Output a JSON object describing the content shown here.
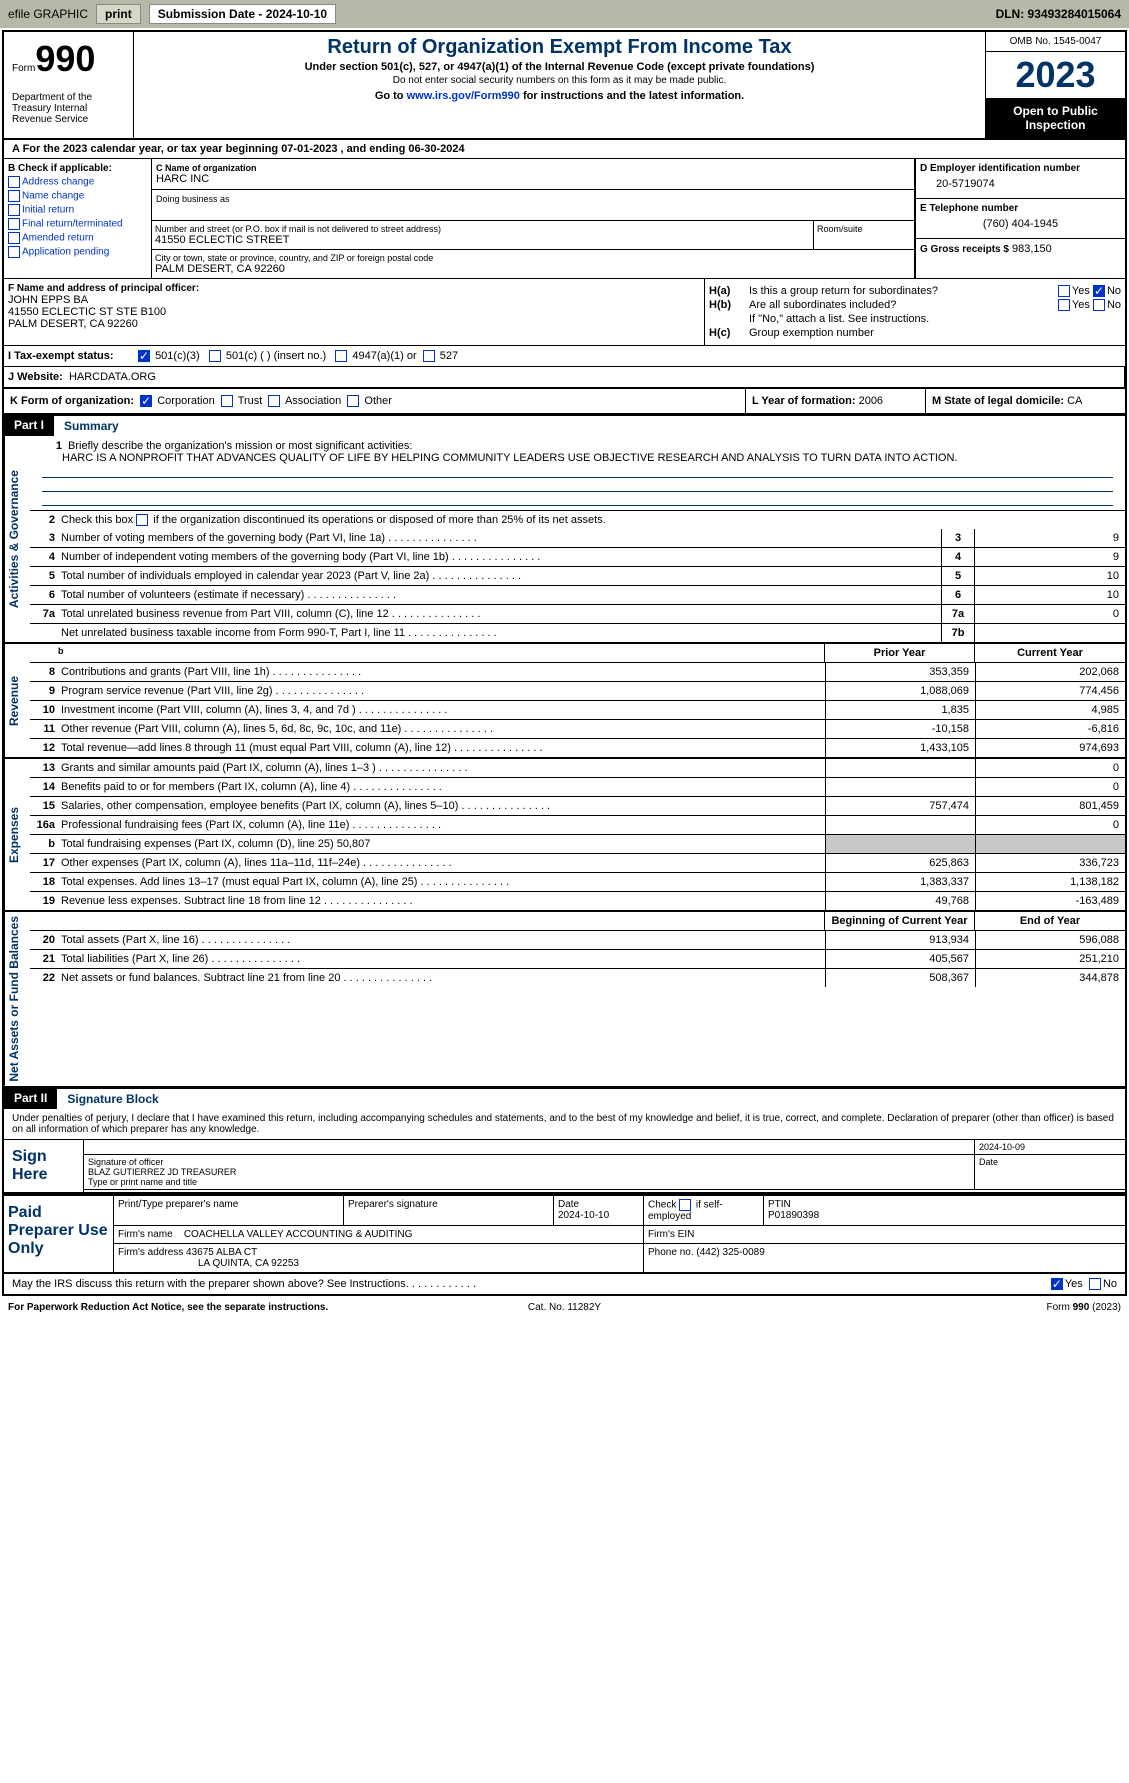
{
  "top_bar": {
    "efile_label": "efile GRAPHIC",
    "print_btn": "print",
    "sub_date_label": "Submission Date - 2024-10-10",
    "dln": "DLN: 93493284015064"
  },
  "header": {
    "form_label": "Form",
    "form_number": "990",
    "dept": "Department of the Treasury Internal Revenue Service",
    "title": "Return of Organization Exempt From Income Tax",
    "subtitle": "Under section 501(c), 527, or 4947(a)(1) of the Internal Revenue Code (except private foundations)",
    "note": "Do not enter social security numbers on this form as it may be made public.",
    "link_prefix": "Go to ",
    "link_url": "www.irs.gov/Form990",
    "link_suffix": " for instructions and the latest information.",
    "omb": "OMB No. 1545-0047",
    "year": "2023",
    "open": "Open to Public Inspection"
  },
  "line_a": "A  For the 2023 calendar year, or tax year beginning 07-01-2023   , and ending 06-30-2024",
  "section_b": {
    "header": "B Check if applicable:",
    "opts": [
      "Address change",
      "Name change",
      "Initial return",
      "Final return/terminated",
      "Amended return",
      "Application pending"
    ]
  },
  "section_c": {
    "name_lbl": "C Name of organization",
    "name": "HARC INC",
    "dba_lbl": "Doing business as",
    "street_lbl": "Number and street (or P.O. box if mail is not delivered to street address)",
    "street": "41550 ECLECTIC STREET",
    "suite_lbl": "Room/suite",
    "city_lbl": "City or town, state or province, country, and ZIP or foreign postal code",
    "city": "PALM DESERT, CA  92260"
  },
  "section_d": {
    "lbl": "D Employer identification number",
    "val": "20-5719074"
  },
  "section_e": {
    "lbl": "E Telephone number",
    "val": "(760) 404-1945"
  },
  "section_g": {
    "lbl": "G Gross receipts $",
    "val": "983,150"
  },
  "section_f": {
    "lbl": "F  Name and address of principal officer:",
    "name": "JOHN EPPS BA",
    "addr1": "41550 ECLECTIC ST STE B100",
    "addr2": "PALM DESERT, CA  92260"
  },
  "section_h": {
    "ha_lbl": "H(a)",
    "ha_txt": "Is this a group return for subordinates?",
    "hb_lbl": "H(b)",
    "hb_txt": "Are all subordinates included?",
    "hb_note": "If \"No,\" attach a list. See instructions.",
    "hc_lbl": "H(c)",
    "hc_txt": "Group exemption number",
    "yes": "Yes",
    "no": "No"
  },
  "section_i": {
    "lbl": "I   Tax-exempt status:",
    "o1": "501(c)(3)",
    "o2": "501(c) (  ) (insert no.)",
    "o3": "4947(a)(1) or",
    "o4": "527"
  },
  "section_j": {
    "lbl": "J   Website:",
    "val": "HARCDATA.ORG"
  },
  "section_k": {
    "lbl": "K Form of organization:",
    "o1": "Corporation",
    "o2": "Trust",
    "o3": "Association",
    "o4": "Other"
  },
  "section_l": {
    "lbl": "L Year of formation:",
    "val": "2006"
  },
  "section_m": {
    "lbl": "M State of legal domicile:",
    "val": "CA"
  },
  "part1": {
    "lbl": "Part I",
    "title": "Summary"
  },
  "summary": {
    "gov_label": "Activities & Governance",
    "rev_label": "Revenue",
    "exp_label": "Expenses",
    "net_label": "Net Assets or Fund Balances",
    "line1_lbl": "Briefly describe the organization's mission or most significant activities:",
    "line1_txt": "HARC IS A NONPROFIT THAT ADVANCES QUALITY OF LIFE BY HELPING COMMUNITY LEADERS USE OBJECTIVE RESEARCH AND ANALYSIS TO TURN DATA INTO ACTION.",
    "line2": "Check this box       if the organization discontinued its operations or disposed of more than 25% of its net assets.",
    "rows_gov": [
      {
        "n": "3",
        "d": "Number of voting members of the governing body (Part VI, line 1a)",
        "k": "3",
        "v": "9"
      },
      {
        "n": "4",
        "d": "Number of independent voting members of the governing body (Part VI, line 1b)",
        "k": "4",
        "v": "9"
      },
      {
        "n": "5",
        "d": "Total number of individuals employed in calendar year 2023 (Part V, line 2a)",
        "k": "5",
        "v": "10"
      },
      {
        "n": "6",
        "d": "Total number of volunteers (estimate if necessary)",
        "k": "6",
        "v": "10"
      },
      {
        "n": "7a",
        "d": "Total unrelated business revenue from Part VIII, column (C), line 12",
        "k": "7a",
        "v": "0"
      },
      {
        "n": "",
        "d": "Net unrelated business taxable income from Form 990-T, Part I, line 11",
        "k": "7b",
        "v": ""
      }
    ],
    "prior_hdr": "Prior Year",
    "curr_hdr": "Current Year",
    "rows_rev": [
      {
        "n": "8",
        "d": "Contributions and grants (Part VIII, line 1h)",
        "p": "353,359",
        "c": "202,068"
      },
      {
        "n": "9",
        "d": "Program service revenue (Part VIII, line 2g)",
        "p": "1,088,069",
        "c": "774,456"
      },
      {
        "n": "10",
        "d": "Investment income (Part VIII, column (A), lines 3, 4, and 7d )",
        "p": "1,835",
        "c": "4,985"
      },
      {
        "n": "11",
        "d": "Other revenue (Part VIII, column (A), lines 5, 6d, 8c, 9c, 10c, and 11e)",
        "p": "-10,158",
        "c": "-6,816"
      },
      {
        "n": "12",
        "d": "Total revenue—add lines 8 through 11 (must equal Part VIII, column (A), line 12)",
        "p": "1,433,105",
        "c": "974,693"
      }
    ],
    "rows_exp": [
      {
        "n": "13",
        "d": "Grants and similar amounts paid (Part IX, column (A), lines 1–3 )",
        "p": "",
        "c": "0"
      },
      {
        "n": "14",
        "d": "Benefits paid to or for members (Part IX, column (A), line 4)",
        "p": "",
        "c": "0"
      },
      {
        "n": "15",
        "d": "Salaries, other compensation, employee benefits (Part IX, column (A), lines 5–10)",
        "p": "757,474",
        "c": "801,459"
      },
      {
        "n": "16a",
        "d": "Professional fundraising fees (Part IX, column (A), line 11e)",
        "p": "",
        "c": "0"
      },
      {
        "n": "b",
        "d": "Total fundraising expenses (Part IX, column (D), line 25) 50,807",
        "p": "GRAY",
        "c": "GRAY"
      },
      {
        "n": "17",
        "d": "Other expenses (Part IX, column (A), lines 11a–11d, 11f–24e)",
        "p": "625,863",
        "c": "336,723"
      },
      {
        "n": "18",
        "d": "Total expenses. Add lines 13–17 (must equal Part IX, column (A), line 25)",
        "p": "1,383,337",
        "c": "1,138,182"
      },
      {
        "n": "19",
        "d": "Revenue less expenses. Subtract line 18 from line 12",
        "p": "49,768",
        "c": "-163,489"
      }
    ],
    "begin_hdr": "Beginning of Current Year",
    "end_hdr": "End of Year",
    "rows_net": [
      {
        "n": "20",
        "d": "Total assets (Part X, line 16)",
        "p": "913,934",
        "c": "596,088"
      },
      {
        "n": "21",
        "d": "Total liabilities (Part X, line 26)",
        "p": "405,567",
        "c": "251,210"
      },
      {
        "n": "22",
        "d": "Net assets or fund balances. Subtract line 21 from line 20",
        "p": "508,367",
        "c": "344,878"
      }
    ]
  },
  "part2": {
    "lbl": "Part II",
    "title": "Signature Block"
  },
  "sig": {
    "intro": "Under penalties of perjury, I declare that I have examined this return, including accompanying schedules and statements, and to the best of my knowledge and belief, it is true, correct, and complete. Declaration of preparer (other than officer) is based on all information of which preparer has any knowledge.",
    "sign_here": "Sign Here",
    "date": "2024-10-09",
    "sig_lbl": "Signature of officer",
    "name": "BLAZ GUTIERREZ JD TREASURER",
    "name_lbl": "Type or print name and title",
    "date_lbl": "Date"
  },
  "paid": {
    "lbl": "Paid Preparer Use Only",
    "h1": "Print/Type preparer's name",
    "h2": "Preparer's signature",
    "h3": "Date",
    "h3v": "2024-10-10",
    "h4": "Check        if self-employed",
    "h5": "PTIN",
    "h5v": "P01890398",
    "firm_lbl": "Firm's name",
    "firm": "COACHELLA VALLEY ACCOUNTING & AUDITING",
    "ein_lbl": "Firm's EIN",
    "addr_lbl": "Firm's address",
    "addr1": "43675 ALBA CT",
    "addr2": "LA QUINTA, CA  92253",
    "phone_lbl": "Phone no.",
    "phone": "(442) 325-0089"
  },
  "bottom": {
    "q": "May the IRS discuss this return with the preparer shown above? See Instructions.",
    "yes": "Yes",
    "no": "No"
  },
  "footer": {
    "l": "For Paperwork Reduction Act Notice, see the separate instructions.",
    "c": "Cat. No. 11282Y",
    "r": "Form 990 (2023)"
  }
}
